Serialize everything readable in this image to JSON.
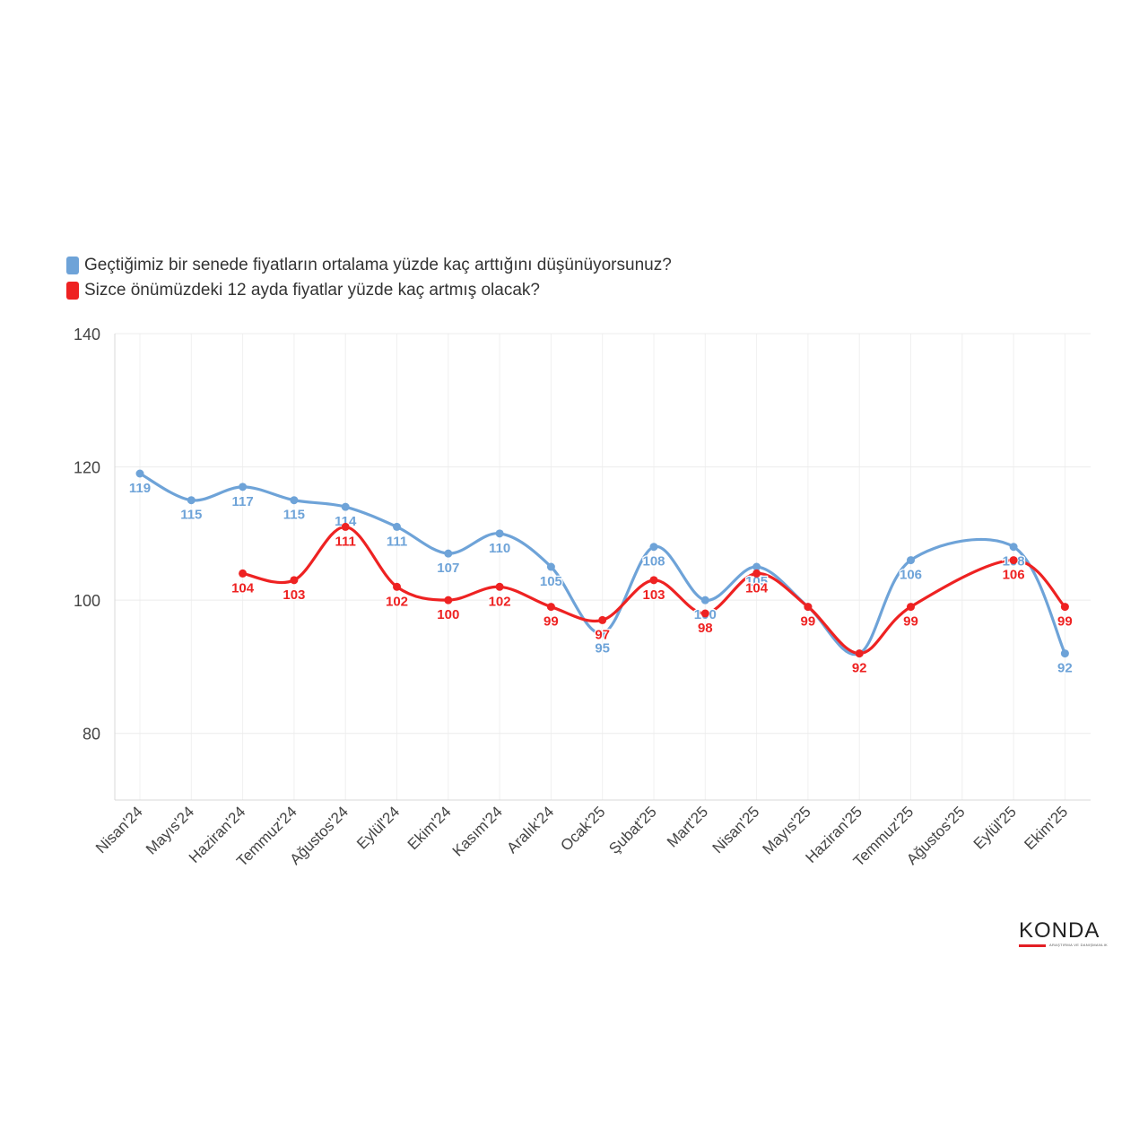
{
  "chart_data": {
    "type": "line",
    "title": "",
    "xlabel": "",
    "ylabel": "",
    "ylim": [
      70,
      140
    ],
    "yticks": [
      80,
      100,
      120,
      140
    ],
    "grid": true,
    "legend_position": "top-left",
    "categories": [
      "Nisan'24",
      "Mayıs'24",
      "Haziran'24",
      "Temmuz'24",
      "Ağustos'24",
      "Eylül'24",
      "Ekim'24",
      "Kasım'24",
      "Aralık'24",
      "Ocak'25",
      "Şubat'25",
      "Mart'25",
      "Nisan'25",
      "Mayıs'25",
      "Haziran'25",
      "Temmuz'25",
      "Ağustos'25",
      "Eylül'25",
      "Ekim'25"
    ],
    "series": [
      {
        "name": "Geçtiğimiz bir senede fiyatların ortalama yüzde kaç arttığını düşünüyorsunuz?",
        "color": "#6ea3d8",
        "label_position": "below",
        "values": [
          119,
          115,
          117,
          115,
          114,
          111,
          107,
          110,
          105,
          95,
          108,
          100,
          105,
          99,
          92,
          106,
          null,
          108,
          92
        ]
      },
      {
        "name": "Sizce önümüzdeki 12 ayda fiyatlar yüzde kaç artmış olacak?",
        "color": "#ee2222",
        "label_position": "below",
        "values": [
          null,
          null,
          104,
          103,
          111,
          102,
          100,
          102,
          99,
          97,
          103,
          98,
          104,
          99,
          92,
          99,
          null,
          106,
          99
        ]
      }
    ]
  },
  "logo": {
    "name": "KONDA",
    "tagline": "ARAŞTIRMA VE DANIŞMANLIK"
  }
}
